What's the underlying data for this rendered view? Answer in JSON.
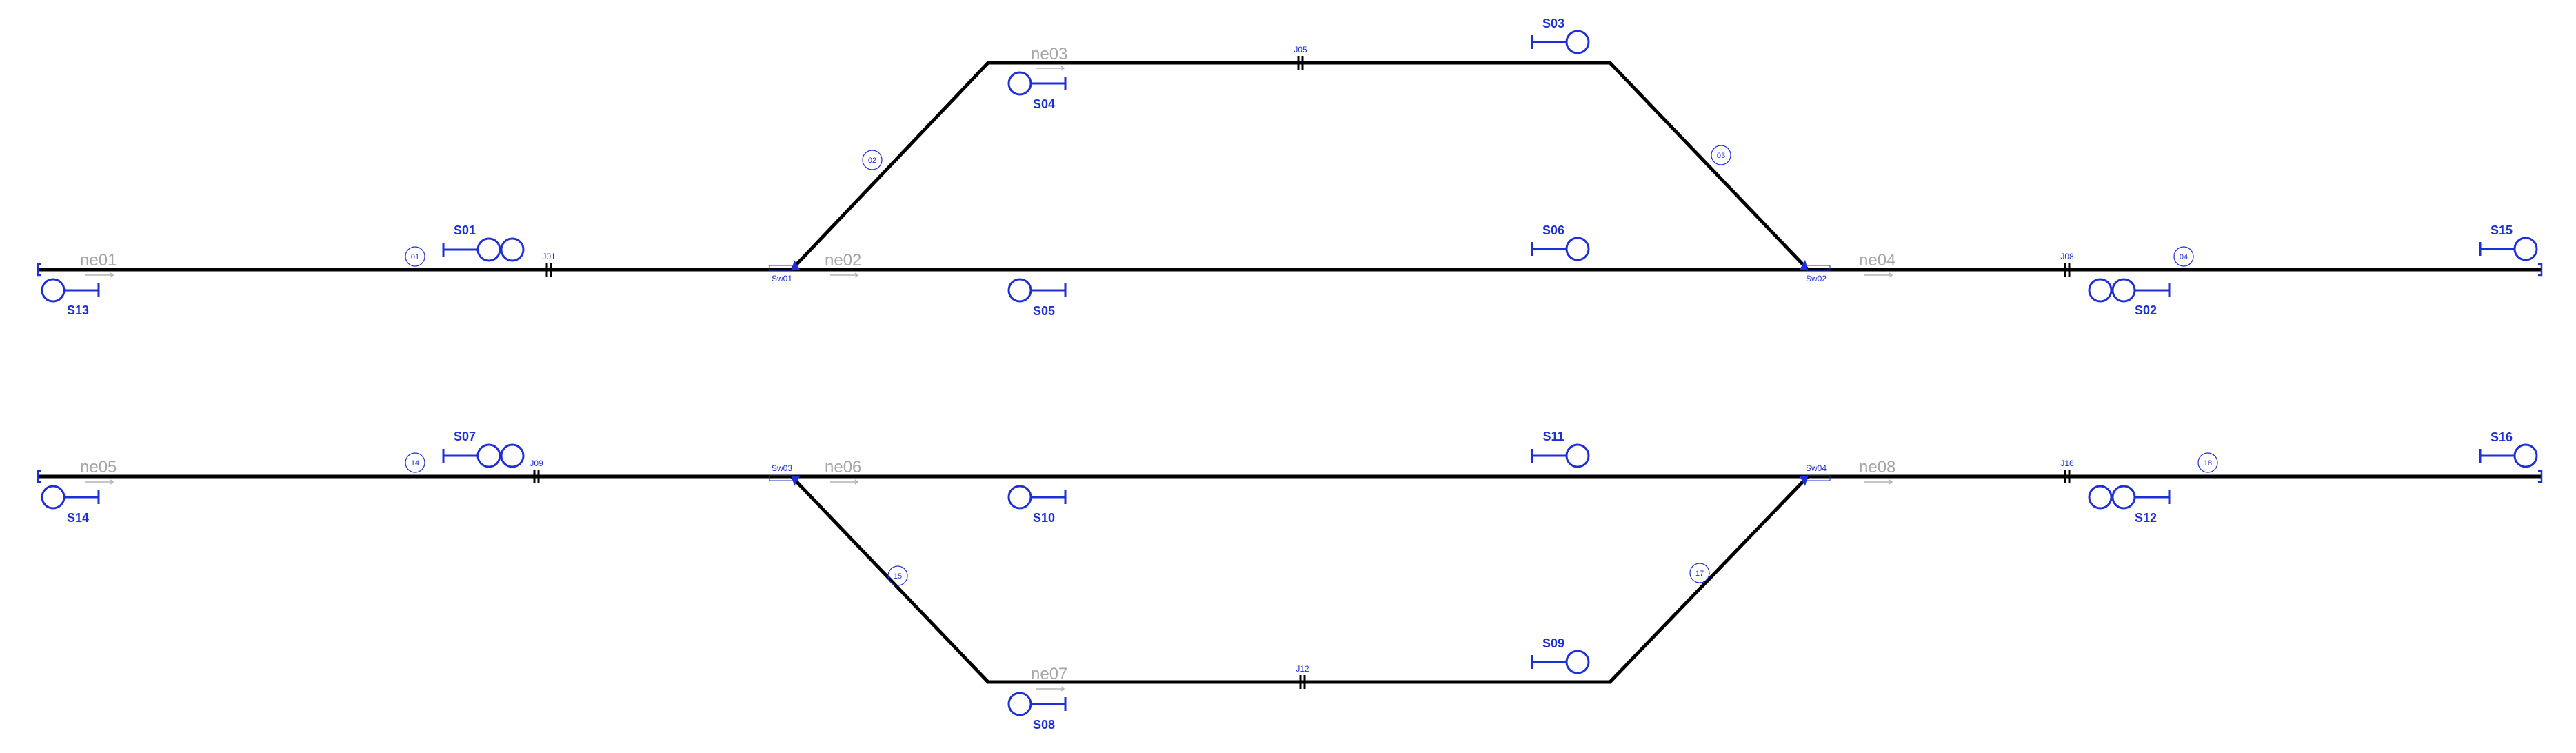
{
  "colors": {
    "track": "#000000",
    "element": "#1f2fd6",
    "netElement": "#a6a6a6"
  },
  "netElements": {
    "ne01": "ne01",
    "ne02": "ne02",
    "ne03": "ne03",
    "ne04": "ne04",
    "ne05": "ne05",
    "ne06": "ne06",
    "ne07": "ne07",
    "ne08": "ne08"
  },
  "signals": {
    "S01": "S01",
    "S02": "S02",
    "S03": "S03",
    "S04": "S04",
    "S05": "S05",
    "S06": "S06",
    "S07": "S07",
    "S08": "S08",
    "S09": "S09",
    "S10": "S10",
    "S11": "S11",
    "S12": "S12",
    "S13": "S13",
    "S14": "S14",
    "S15": "S15",
    "S16": "S16"
  },
  "sections": {
    "s01": "01",
    "s02": "02",
    "s03": "03",
    "s04": "04",
    "s14": "14",
    "s15": "15",
    "s17": "17",
    "s18": "18"
  },
  "joints": {
    "J01": "J01",
    "J05": "J05",
    "J08": "J08",
    "J09": "J09",
    "J12": "J12",
    "J16": "J16"
  },
  "switches": {
    "Sw01": "Sw01",
    "Sw02": "Sw02",
    "Sw03": "Sw03",
    "Sw04": "Sw04"
  }
}
